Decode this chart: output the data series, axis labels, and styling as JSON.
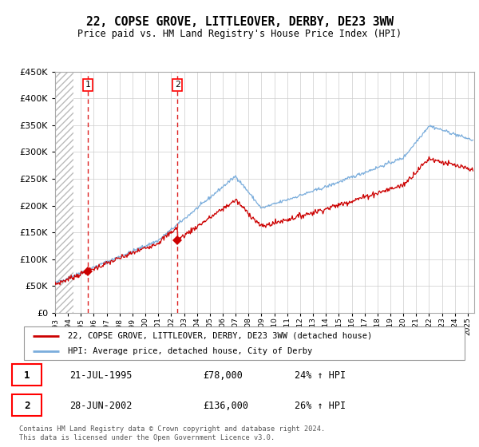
{
  "title": "22, COPSE GROVE, LITTLEOVER, DERBY, DE23 3WW",
  "subtitle": "Price paid vs. HM Land Registry's House Price Index (HPI)",
  "legend_line1": "22, COPSE GROVE, LITTLEOVER, DERBY, DE23 3WW (detached house)",
  "legend_line2": "HPI: Average price, detached house, City of Derby",
  "sale1_date": "21-JUL-1995",
  "sale1_price": "£78,000",
  "sale1_hpi": "24% ↑ HPI",
  "sale2_date": "28-JUN-2002",
  "sale2_price": "£136,000",
  "sale2_hpi": "26% ↑ HPI",
  "footnote": "Contains HM Land Registry data © Crown copyright and database right 2024.\nThis data is licensed under the Open Government Licence v3.0.",
  "sale1_x": 1995.55,
  "sale1_y": 78000,
  "sale2_x": 2002.49,
  "sale2_y": 136000,
  "ylim": [
    0,
    450000
  ],
  "xlim_left": 1993.0,
  "xlim_right": 2025.5,
  "line_color_red": "#cc0000",
  "line_color_blue": "#7aaddc",
  "grid_color": "#cccccc",
  "sale_dot_color": "#cc0000",
  "vline_color": "#dd2222",
  "hatch_end": 1994.4
}
